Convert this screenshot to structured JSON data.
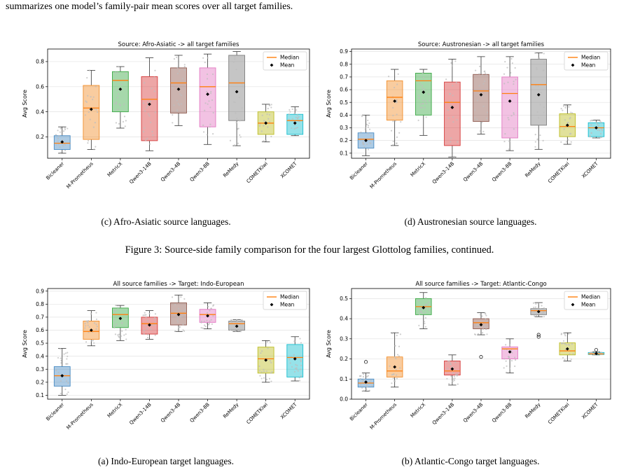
{
  "page": {
    "top_text": "summarizes one model’s family-pair mean scores over all target families.",
    "figure_caption": "Figure 3: Source-side family comparison for the four largest Glottolog families, continued."
  },
  "legend": {
    "median": "Median",
    "mean": "Mean"
  },
  "colors": {
    "Bicleaner": "#4a8cc4",
    "M-Prometheus": "#f28e2b",
    "MetricX": "#3aa844",
    "Qwen3-14B": "#d63a3a",
    "Qwen3-4B": "#8c564b",
    "Qwen3-8B": "#e377c2",
    "ReMedy": "#7f7f7f",
    "COMETKiwi": "#bcbd22",
    "XCOMET": "#17becf",
    "median_line": "#ff7f0e",
    "mean_marker": "#000000"
  },
  "chart_data": [
    {
      "id": "c",
      "type": "box",
      "title": "Source: Afro-Asiatic -> all target families",
      "ylabel": "Avg Score",
      "ylim": [
        0.03,
        0.9
      ],
      "yticks": [
        "0.2",
        "0.4",
        "0.6",
        "0.8"
      ],
      "ytick_values": [
        0.2,
        0.4,
        0.6,
        0.8
      ],
      "legend_position": "top-right",
      "grid": true,
      "caption": "(c) Afro-Asiatic source languages.",
      "categories": [
        "Bicleaner",
        "M-Prometheus",
        "MetricX",
        "Qwen3-14B",
        "Qwen3-4B",
        "Qwen3-8B",
        "ReMedy",
        "COMETKiwi",
        "XCOMET"
      ],
      "boxes": [
        {
          "whislo": 0.07,
          "q1": 0.1,
          "med": 0.15,
          "q3": 0.21,
          "whishi": 0.28,
          "mean": 0.16
        },
        {
          "whislo": 0.1,
          "q1": 0.18,
          "med": 0.43,
          "q3": 0.61,
          "whishi": 0.73,
          "mean": 0.42
        },
        {
          "whislo": 0.27,
          "q1": 0.4,
          "med": 0.65,
          "q3": 0.72,
          "whishi": 0.76,
          "mean": 0.58
        },
        {
          "whislo": 0.09,
          "q1": 0.17,
          "med": 0.5,
          "q3": 0.68,
          "whishi": 0.83,
          "mean": 0.46
        },
        {
          "whislo": 0.29,
          "q1": 0.39,
          "med": 0.63,
          "q3": 0.75,
          "whishi": 0.85,
          "mean": 0.58
        },
        {
          "whislo": 0.14,
          "q1": 0.28,
          "med": 0.6,
          "q3": 0.75,
          "whishi": 0.86,
          "mean": 0.54
        },
        {
          "whislo": 0.13,
          "q1": 0.33,
          "med": 0.63,
          "q3": 0.85,
          "whishi": 0.88,
          "mean": 0.56
        },
        {
          "whislo": 0.16,
          "q1": 0.22,
          "med": 0.31,
          "q3": 0.4,
          "whishi": 0.46,
          "mean": 0.31
        },
        {
          "whislo": 0.21,
          "q1": 0.22,
          "med": 0.33,
          "q3": 0.38,
          "whishi": 0.44,
          "mean": 0.31
        }
      ],
      "outliers": []
    },
    {
      "id": "d",
      "type": "box",
      "title": "Source: Austronesian -> all target families",
      "ylabel": "Avg Score",
      "ylim": [
        0.06,
        0.92
      ],
      "yticks": [
        "0.1",
        "0.2",
        "0.3",
        "0.4",
        "0.5",
        "0.6",
        "0.7",
        "0.8",
        "0.9"
      ],
      "ytick_values": [
        0.1,
        0.2,
        0.3,
        0.4,
        0.5,
        0.6,
        0.7,
        0.8,
        0.9
      ],
      "legend_position": "top-right",
      "grid": true,
      "caption": "(d) Austronesian source languages.",
      "categories": [
        "Bicleaner",
        "M-Prometheus",
        "MetricX",
        "Qwen3-14B",
        "Qwen3-4B",
        "Qwen3-8B",
        "ReMedy",
        "COMETKiwi",
        "XCOMET"
      ],
      "boxes": [
        {
          "whislo": 0.08,
          "q1": 0.14,
          "med": 0.21,
          "q3": 0.26,
          "whishi": 0.4,
          "mean": 0.2
        },
        {
          "whislo": 0.16,
          "q1": 0.36,
          "med": 0.54,
          "q3": 0.67,
          "whishi": 0.76,
          "mean": 0.51
        },
        {
          "whislo": 0.24,
          "q1": 0.4,
          "med": 0.67,
          "q3": 0.73,
          "whishi": 0.76,
          "mean": 0.58
        },
        {
          "whislo": 0.07,
          "q1": 0.16,
          "med": 0.5,
          "q3": 0.66,
          "whishi": 0.84,
          "mean": 0.46
        },
        {
          "whislo": 0.25,
          "q1": 0.35,
          "med": 0.59,
          "q3": 0.72,
          "whishi": 0.86,
          "mean": 0.56
        },
        {
          "whislo": 0.12,
          "q1": 0.22,
          "med": 0.57,
          "q3": 0.7,
          "whishi": 0.86,
          "mean": 0.51
        },
        {
          "whislo": 0.13,
          "q1": 0.32,
          "med": 0.64,
          "q3": 0.84,
          "whishi": 0.89,
          "mean": 0.56
        },
        {
          "whislo": 0.17,
          "q1": 0.23,
          "med": 0.31,
          "q3": 0.41,
          "whishi": 0.48,
          "mean": 0.32
        },
        {
          "whislo": 0.22,
          "q1": 0.23,
          "med": 0.3,
          "q3": 0.34,
          "whishi": 0.36,
          "mean": 0.3
        }
      ],
      "outliers": []
    },
    {
      "id": "a",
      "type": "box",
      "title": "All source families -> Target: Indo-European",
      "ylabel": "Avg Score",
      "ylim": [
        0.07,
        0.92
      ],
      "yticks": [
        "0.1",
        "0.2",
        "0.3",
        "0.4",
        "0.5",
        "0.6",
        "0.7",
        "0.8",
        "0.9"
      ],
      "ytick_values": [
        0.1,
        0.2,
        0.3,
        0.4,
        0.5,
        0.6,
        0.7,
        0.8,
        0.9
      ],
      "legend_position": "top-right",
      "grid": true,
      "caption": "(a) Indo-European target languages.",
      "categories": [
        "Bicleaner",
        "M-Prometheus",
        "MetricX",
        "Qwen3-14B",
        "Qwen3-4B",
        "Qwen3-8B",
        "ReMedy",
        "COMETKiwi",
        "XCOMET"
      ],
      "boxes": [
        {
          "whislo": 0.1,
          "q1": 0.17,
          "med": 0.25,
          "q3": 0.32,
          "whishi": 0.46,
          "mean": 0.25
        },
        {
          "whislo": 0.48,
          "q1": 0.53,
          "med": 0.59,
          "q3": 0.67,
          "whishi": 0.75,
          "mean": 0.6
        },
        {
          "whislo": 0.52,
          "q1": 0.62,
          "med": 0.72,
          "q3": 0.77,
          "whishi": 0.79,
          "mean": 0.69
        },
        {
          "whislo": 0.53,
          "q1": 0.57,
          "med": 0.65,
          "q3": 0.7,
          "whishi": 0.75,
          "mean": 0.64
        },
        {
          "whislo": 0.59,
          "q1": 0.64,
          "med": 0.73,
          "q3": 0.81,
          "whishi": 0.87,
          "mean": 0.72
        },
        {
          "whislo": 0.61,
          "q1": 0.66,
          "med": 0.72,
          "q3": 0.76,
          "whishi": 0.81,
          "mean": 0.71
        },
        {
          "whislo": 0.59,
          "q1": 0.6,
          "med": 0.65,
          "q3": 0.67,
          "whishi": 0.68,
          "mean": 0.63
        },
        {
          "whislo": 0.2,
          "q1": 0.27,
          "med": 0.38,
          "q3": 0.47,
          "whishi": 0.52,
          "mean": 0.37
        },
        {
          "whislo": 0.21,
          "q1": 0.24,
          "med": 0.39,
          "q3": 0.49,
          "whishi": 0.55,
          "mean": 0.38
        }
      ],
      "outliers": []
    },
    {
      "id": "b",
      "type": "box",
      "title": "All source families -> Target: Atlantic-Congo",
      "ylabel": "Avg Score",
      "ylim": [
        0.0,
        0.55
      ],
      "yticks": [
        "0.0",
        "0.1",
        "0.2",
        "0.3",
        "0.4",
        "0.5"
      ],
      "ytick_values": [
        0.0,
        0.1,
        0.2,
        0.3,
        0.4,
        0.5
      ],
      "legend_position": "top-right",
      "grid": true,
      "caption": "(b) Atlantic-Congo target languages.",
      "categories": [
        "Bicleaner",
        "M-Prometheus",
        "MetricX",
        "Qwen3-14B",
        "Qwen3-4B",
        "Qwen3-8B",
        "ReMedy",
        "COMETKiwi",
        "XCOMET"
      ],
      "boxes": [
        {
          "whislo": 0.04,
          "q1": 0.06,
          "med": 0.08,
          "q3": 0.1,
          "whishi": 0.13,
          "mean": 0.085
        },
        {
          "whislo": 0.06,
          "q1": 0.11,
          "med": 0.14,
          "q3": 0.21,
          "whishi": 0.33,
          "mean": 0.16
        },
        {
          "whislo": 0.35,
          "q1": 0.42,
          "med": 0.46,
          "q3": 0.5,
          "whishi": 0.53,
          "mean": 0.455
        },
        {
          "whislo": 0.07,
          "q1": 0.12,
          "med": 0.14,
          "q3": 0.19,
          "whishi": 0.22,
          "mean": 0.15
        },
        {
          "whislo": 0.32,
          "q1": 0.35,
          "med": 0.38,
          "q3": 0.4,
          "whishi": 0.43,
          "mean": 0.37
        },
        {
          "whislo": 0.13,
          "q1": 0.2,
          "med": 0.25,
          "q3": 0.26,
          "whishi": 0.3,
          "mean": 0.235
        },
        {
          "whislo": 0.41,
          "q1": 0.42,
          "med": 0.44,
          "q3": 0.45,
          "whishi": 0.48,
          "mean": 0.435
        },
        {
          "whislo": 0.19,
          "q1": 0.22,
          "med": 0.24,
          "q3": 0.28,
          "whishi": 0.33,
          "mean": 0.25
        },
        {
          "whislo": 0.22,
          "q1": 0.222,
          "med": 0.225,
          "q3": 0.232,
          "whishi": 0.235,
          "mean": 0.227
        }
      ],
      "outliers": [
        {
          "box": 0,
          "value": 0.185
        },
        {
          "box": 4,
          "value": 0.21
        },
        {
          "box": 6,
          "value": 0.32
        },
        {
          "box": 6,
          "value": 0.31
        },
        {
          "box": 8,
          "value": 0.245
        }
      ]
    }
  ]
}
